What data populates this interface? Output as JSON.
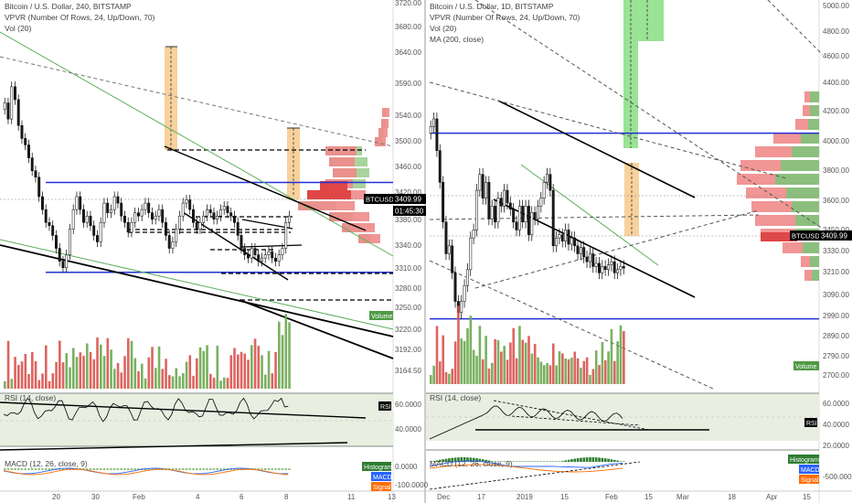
{
  "colors": {
    "up": "#6aa84f",
    "down": "#d9534f",
    "candle_up": "#ffffff",
    "candle_down": "#1a1a1a",
    "blue_line": "#2231d6",
    "trend": "#000000",
    "green_trend": "#5cae5c",
    "orange_zone": "#f7c98b",
    "green_zone": "#8ee08a",
    "rsi_bg": "#e8efe1",
    "axis_text": "#555555",
    "label_dark": "#000000",
    "histogram": "#2e7d32",
    "macd": "#2962ff",
    "signal": "#ff6d00"
  },
  "left_panel": {
    "legend": [
      "Bitcoin / U.S. Dollar, 240, BITSTAMP",
      "VPVR (Number Of Rows, 24, Up/Down, 70)",
      "Vol (20)"
    ],
    "price_axis": [
      "3720.00",
      "3680.00",
      "3640.00",
      "3590.00",
      "3540.00",
      "3500.00",
      "3460.00",
      "3420.00",
      "3380.00",
      "3340.00",
      "3310.00",
      "3280.00",
      "3250.00",
      "3220.00",
      "3192.00",
      "3164.50"
    ],
    "price_tag": "3409.99",
    "symbol_tag": "BTCUSD",
    "countdown_tag": "01:45:30",
    "volume_tag": "Volume",
    "rsi_legend": "RSI (14, close)",
    "rsi_tag": "RSI",
    "rsi_axis": [
      "60.0000",
      "40.0000"
    ],
    "macd_legend": "MACD (12, 26, close, 9)",
    "macd_axis": [
      "0.0000",
      "-100.0000"
    ],
    "tags": [
      "Histogram",
      "MACD",
      "Signal"
    ],
    "time_axis": [
      "20",
      "30",
      "Feb",
      "4",
      "6",
      "8",
      "11",
      "13"
    ]
  },
  "right_panel": {
    "legend": [
      "Bitcoin / U.S. Dollar, 1D, BITSTAMP",
      "VPVR (Number Of Rows, 24, Up/Down, 70)",
      "Vol (20)",
      "MA (200, close)"
    ],
    "price_axis": [
      "5000.00",
      "4800.00",
      "4600.00",
      "4400.00",
      "4200.00",
      "4000.00",
      "3800.00",
      "3600.00",
      "3450.00",
      "3330.00",
      "3210.00",
      "3090.00",
      "2990.00",
      "2890.00",
      "2790.00",
      "2700.00"
    ],
    "price_tag": "3409.99",
    "symbol_tag": "BTCUSD",
    "volume_tag": "Volume",
    "rsi_legend": "RSI (14, close)",
    "rsi_tag": "RSI",
    "rsi_axis": [
      "60.0000",
      "40.0000",
      "20.0000"
    ],
    "macd_legend": "MACD (12, 26, close, 9)",
    "macd_axis": [
      "-500.0000"
    ],
    "tags": [
      "Histogram",
      "MACD",
      "Signal"
    ],
    "time_axis": [
      "Dec",
      "17",
      "2019",
      "15",
      "Feb",
      "15",
      "Mar",
      "18",
      "Apr",
      "15"
    ]
  },
  "chart_data": [
    {
      "type": "candlestick",
      "title": "Bitcoin / U.S. Dollar, 240, BITSTAMP",
      "ylim": [
        3150,
        3730
      ],
      "last_price": 3409.99,
      "levels": [
        3462,
        3323
      ],
      "closes": [
        3585,
        3560,
        3610,
        3590,
        3550,
        3530,
        3520,
        3500,
        3480,
        3470,
        3440,
        3420,
        3400,
        3395,
        3380,
        3360,
        3340,
        3330,
        3350,
        3390,
        3420,
        3440,
        3420,
        3400,
        3410,
        3395,
        3380,
        3370,
        3400,
        3430,
        3415,
        3420,
        3440,
        3430,
        3410,
        3400,
        3385,
        3400,
        3415,
        3410,
        3420,
        3430,
        3415,
        3405,
        3410,
        3420,
        3400,
        3380,
        3360,
        3370,
        3390,
        3410,
        3430,
        3435,
        3420,
        3400,
        3390,
        3400,
        3410,
        3420,
        3415,
        3405,
        3410,
        3420,
        3425,
        3415,
        3410,
        3400,
        3380,
        3360,
        3350,
        3345,
        3360,
        3350,
        3340,
        3345,
        3350,
        3355,
        3345,
        3340,
        3350,
        3360,
        3400,
        3410
      ]
    },
    {
      "type": "candlestick",
      "title": "Bitcoin / U.S. Dollar, 1D, BITSTAMP",
      "ylim": [
        2650,
        5070
      ],
      "last_price": 3409.99,
      "levels": [
        4260,
        3090
      ],
      "ma_200": "MA (200, close)",
      "closes": [
        4300,
        4350,
        4150,
        3950,
        3700,
        3500,
        3550,
        3380,
        3200,
        3130,
        3200,
        3300,
        3400,
        3600,
        3650,
        3900,
        4000,
        3850,
        3950,
        3720,
        3800,
        3700,
        3850,
        3800,
        3900,
        3820,
        3780,
        3700,
        3650,
        3800,
        3700,
        3800,
        3620,
        3760,
        3720,
        3800,
        3850,
        3950,
        4000,
        3900,
        3550,
        3600,
        3620,
        3580,
        3650,
        3560,
        3600,
        3550,
        3500,
        3540,
        3480,
        3450,
        3500,
        3420,
        3440,
        3380,
        3420,
        3400,
        3430,
        3450,
        3380,
        3400,
        3420,
        3410
      ]
    }
  ]
}
